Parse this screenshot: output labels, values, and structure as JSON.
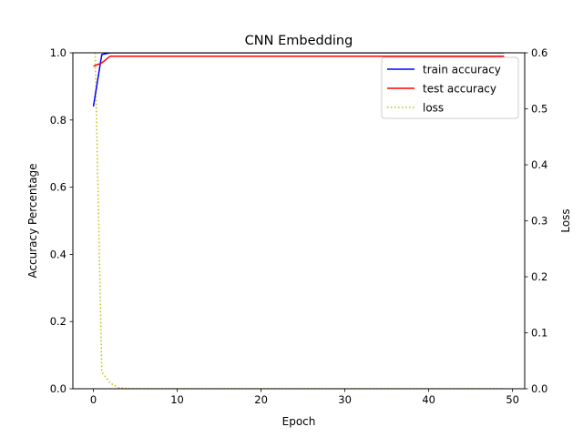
{
  "chart_data": {
    "type": "line",
    "title": "CNN Embedding",
    "xlabel": "Epoch",
    "ylabel": "Accuracy Percentage",
    "y2label": "Loss",
    "xlim": [
      -2.45,
      51.45
    ],
    "ylim": [
      0,
      1.0
    ],
    "y2lim": [
      0,
      0.6
    ],
    "xticks": [
      0,
      10,
      20,
      30,
      40,
      50
    ],
    "yticks": [
      0.0,
      0.2,
      0.4,
      0.6,
      0.8,
      1.0
    ],
    "y2ticks": [
      0.0,
      0.1,
      0.2,
      0.3,
      0.4,
      0.5,
      0.6
    ],
    "grid": false,
    "legend_position": "top-right",
    "x": [
      0,
      1,
      2,
      3,
      4,
      5,
      6,
      7,
      8,
      9,
      10,
      11,
      12,
      13,
      14,
      15,
      16,
      17,
      18,
      19,
      20,
      21,
      22,
      23,
      24,
      25,
      26,
      27,
      28,
      29,
      30,
      31,
      32,
      33,
      34,
      35,
      36,
      37,
      38,
      39,
      40,
      41,
      42,
      43,
      44,
      45,
      46,
      47,
      48,
      49
    ],
    "series": [
      {
        "name": "train accuracy",
        "axis": "left",
        "color": "#0000ff",
        "style": "solid",
        "values": [
          0.84,
          0.995,
          1.0,
          1.0,
          1.0,
          1.0,
          1.0,
          1.0,
          1.0,
          1.0,
          1.0,
          1.0,
          1.0,
          1.0,
          1.0,
          1.0,
          1.0,
          1.0,
          1.0,
          1.0,
          1.0,
          1.0,
          1.0,
          1.0,
          1.0,
          1.0,
          1.0,
          1.0,
          1.0,
          1.0,
          1.0,
          1.0,
          1.0,
          1.0,
          1.0,
          1.0,
          1.0,
          1.0,
          1.0,
          1.0,
          1.0,
          1.0,
          1.0,
          1.0,
          1.0,
          1.0,
          1.0,
          1.0,
          1.0,
          1.0
        ]
      },
      {
        "name": "test accuracy",
        "axis": "left",
        "color": "#ff0000",
        "style": "solid",
        "values": [
          0.96,
          0.97,
          0.99,
          0.99,
          0.99,
          0.99,
          0.99,
          0.99,
          0.99,
          0.99,
          0.99,
          0.99,
          0.99,
          0.99,
          0.99,
          0.99,
          0.99,
          0.99,
          0.99,
          0.99,
          0.99,
          0.99,
          0.99,
          0.99,
          0.99,
          0.99,
          0.99,
          0.99,
          0.99,
          0.99,
          0.99,
          0.99,
          0.99,
          0.99,
          0.99,
          0.99,
          0.99,
          0.99,
          0.99,
          0.99,
          0.99,
          0.99,
          0.99,
          0.99,
          0.99,
          0.99,
          0.99,
          0.99,
          0.99,
          0.99
        ]
      },
      {
        "name": "loss",
        "axis": "right",
        "color": "#bfbf00",
        "style": "dotted",
        "values": [
          0.75,
          0.03,
          0.01,
          0.002,
          0.0005,
          0.0002,
          0.0001,
          0,
          0,
          0,
          0,
          0,
          0,
          0,
          0,
          0,
          0,
          0,
          0,
          0,
          0,
          0,
          0,
          0,
          0,
          0,
          0,
          0,
          0,
          0,
          0,
          0,
          0,
          0,
          0,
          0,
          0,
          0,
          0,
          0,
          0,
          0,
          0,
          0,
          0,
          0,
          0,
          0,
          0,
          0
        ]
      }
    ]
  }
}
